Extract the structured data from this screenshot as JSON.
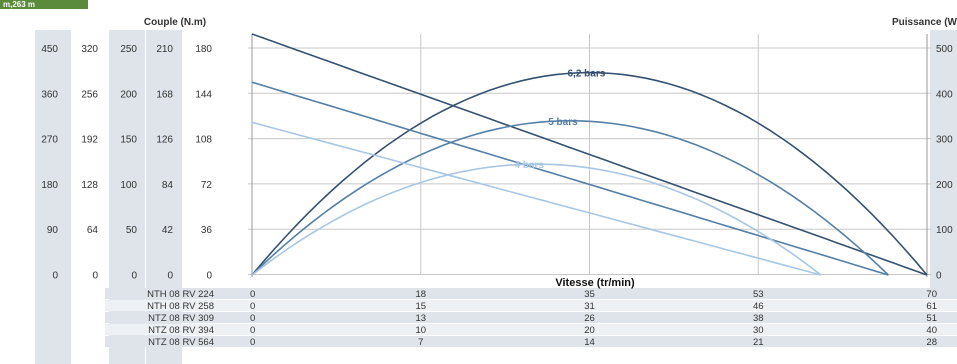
{
  "corner_badge": "m,263 m",
  "colors": {
    "band": "#dfe4ea",
    "grid": "#c8c8c8",
    "text": "#333333",
    "series": [
      "#34516f",
      "#557fa6",
      "#a9c6e3"
    ]
  },
  "chart_data": {
    "type": "line",
    "left_axis_title": "Couple (N.m)",
    "right_axis_title": "Puissance (W",
    "x_axis_title": "Vitesse (tr/min)",
    "torque_scales": [
      [
        "450",
        "360",
        "270",
        "180",
        "90",
        "0"
      ],
      [
        "320",
        "256",
        "192",
        "128",
        "64",
        "0"
      ],
      [
        "250",
        "200",
        "150",
        "100",
        "50",
        "0"
      ],
      [
        "210",
        "168",
        "126",
        "84",
        "42",
        "0"
      ],
      [
        "180",
        "144",
        "108",
        "72",
        "36",
        "0"
      ]
    ],
    "power_ticks": [
      "500",
      "400",
      "300",
      "200",
      "100",
      "0"
    ],
    "x_ticks_models": [
      {
        "model": "NTH 08 RV 224",
        "ticks": [
          "0",
          "18",
          "35",
          "53",
          "70"
        ]
      },
      {
        "model": "NTH 08 RV 258",
        "ticks": [
          "0",
          "15",
          "31",
          "46",
          "61"
        ]
      },
      {
        "model": "NTZ 08 RV 309",
        "ticks": [
          "0",
          "13",
          "26",
          "38",
          "51"
        ]
      },
      {
        "model": "NTZ 08 RV 394",
        "ticks": [
          "0",
          "10",
          "20",
          "30",
          "40"
        ]
      },
      {
        "model": "NTZ 08 RV 564",
        "ticks": [
          "0",
          "7",
          "14",
          "21",
          "28"
        ]
      }
    ],
    "series": [
      {
        "name": "6,2 bars",
        "color": "#34516f",
        "torque_max": 180,
        "torque_zero_speed": 70,
        "power_max": 420
      },
      {
        "name": "5 bars",
        "color": "#557fa6",
        "torque_max": 144,
        "torque_zero_speed": 66,
        "power_max": 320
      },
      {
        "name": "4 bars",
        "color": "#a9c6e3",
        "torque_max": 114,
        "torque_zero_speed": 59,
        "power_max": 230
      }
    ],
    "xlim": [
      0,
      70
    ],
    "torque_ylim": [
      0,
      180
    ],
    "power_ylim": [
      0,
      500
    ],
    "grid": true
  }
}
